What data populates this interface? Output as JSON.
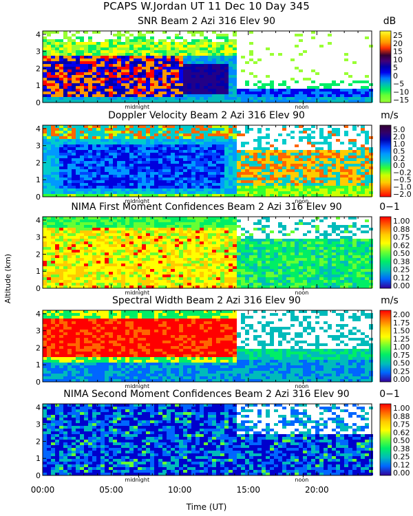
{
  "header": {
    "line1": "PCAPS W.Jordan UT  11 Dec 10 Day 345"
  },
  "axes": {
    "ylabel": "Altitude (km)",
    "xlabel": "Time (UT)",
    "yticks": [
      "0",
      "1",
      "2",
      "3",
      "4"
    ],
    "xticks": [
      "00:00",
      "05:00",
      "10:00",
      "15:00",
      "20:00"
    ],
    "marker_midnight": "midnight",
    "marker_noon": "noon"
  },
  "chart_data": [
    {
      "type": "heatmap",
      "title": "SNR Beam 2 Azi 316 Elev 90",
      "unit": "dB",
      "colorbar_ticks": [
        "25",
        "20",
        "15",
        "10",
        "5",
        "0",
        "−5",
        "−10",
        "−15"
      ],
      "colors": [
        "#ff0000",
        "#ff6600",
        "#ff9900",
        "#ffcc00",
        "#ffff00",
        "#99ff33",
        "#00ee66",
        "#00bbbb",
        "#0077ff",
        "#0000dd",
        "#0000aa",
        "#220088",
        "#440077",
        "#330033"
      ],
      "xlim": [
        0,
        24
      ],
      "ylim": [
        0,
        4.2
      ]
    },
    {
      "type": "heatmap",
      "title": "Doppler Velocity Beam 2 Azi 316 Elev 90",
      "unit": "m/s",
      "colorbar_ticks": [
        "5.0",
        "2.0",
        "1.0",
        "0.5",
        "0.2",
        "0.0",
        "−0.2",
        "−0.5",
        "−1.0",
        "−2.0"
      ],
      "xlim": [
        0,
        24
      ],
      "ylim": [
        0,
        4.2
      ]
    },
    {
      "type": "heatmap",
      "title": "NIMA First Moment Confidences Beam 2 Azi 316 Elev 90",
      "unit": "0−1",
      "colorbar_ticks": [
        "1.00",
        "0.88",
        "0.75",
        "0.62",
        "0.50",
        "0.38",
        "0.25",
        "0.12",
        "0.00"
      ],
      "xlim": [
        0,
        24
      ],
      "ylim": [
        0,
        4.2
      ]
    },
    {
      "type": "heatmap",
      "title": "Spectral Width Beam 2 Azi 316 Elev 90",
      "unit": "m/s",
      "colorbar_ticks": [
        "2.00",
        "1.75",
        "1.50",
        "1.25",
        "1.00",
        "0.75",
        "0.50",
        "0.25",
        "0.00"
      ],
      "xlim": [
        0,
        24
      ],
      "ylim": [
        0,
        4.2
      ]
    },
    {
      "type": "heatmap",
      "title": "NIMA Second Moment Confidences Beam 2 Azi 316 Elev 90",
      "unit": "0−1",
      "colorbar_ticks": [
        "1.00",
        "0.88",
        "0.75",
        "0.62",
        "0.50",
        "0.38",
        "0.25",
        "0.12",
        "0.00"
      ],
      "xlim": [
        0,
        24
      ],
      "ylim": [
        0,
        4.2
      ]
    }
  ]
}
